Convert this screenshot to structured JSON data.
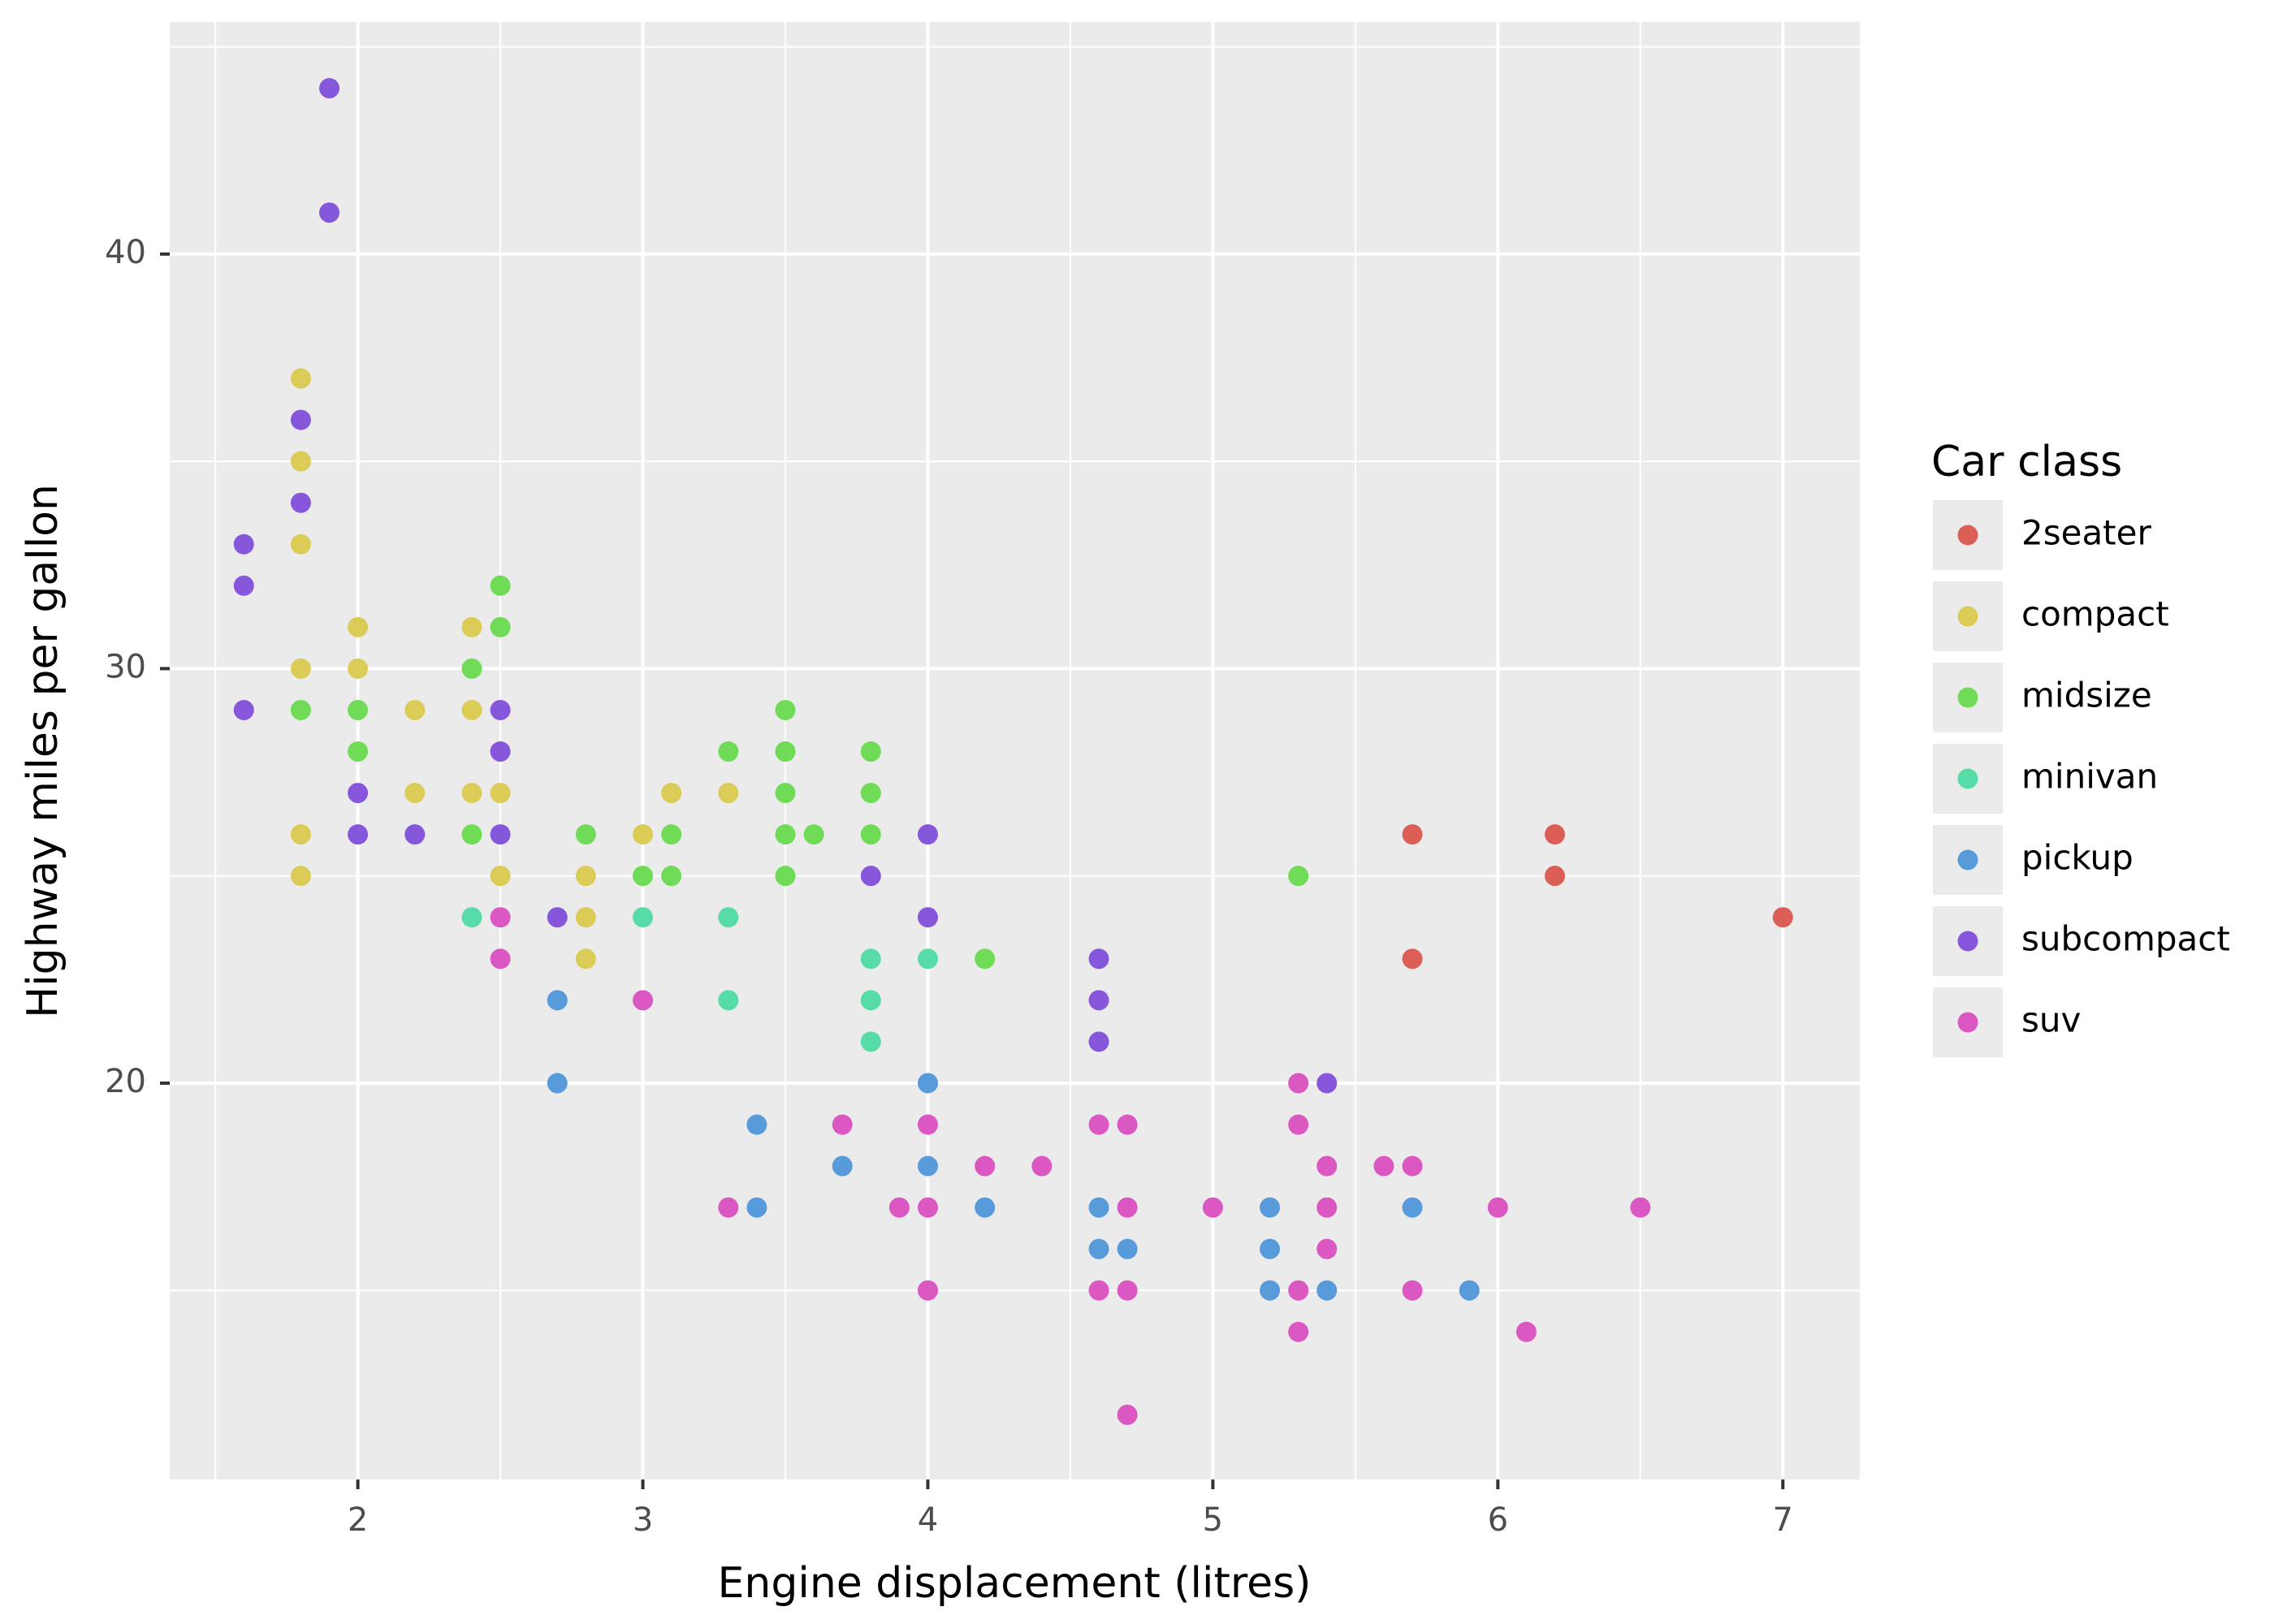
{
  "chart_data": {
    "type": "scatter",
    "x_label": "Engine displacement (litres)",
    "y_label": "Highway miles per gallon",
    "legend_title": "Car class",
    "legend_position": "right",
    "xlim": [
      1.34,
      7.27
    ],
    "ylim": [
      10.44,
      45.6
    ],
    "xticks": [
      2,
      3,
      4,
      5,
      6,
      7
    ],
    "yticks": [
      20,
      30,
      40
    ],
    "x_minor_grid": [
      1.5,
      2.5,
      3.5,
      4.5,
      5.5,
      6.5
    ],
    "y_minor_grid": [
      15,
      25,
      35,
      45
    ],
    "grid": true,
    "series": [
      {
        "name": "2seater",
        "color": "#db5f57",
        "x": [
          5.7,
          6.2,
          6.2,
          5.7,
          7
        ],
        "values": [
          26,
          26,
          25,
          23,
          24
        ]
      },
      {
        "name": "compact",
        "color": "#dbcb57",
        "x": [
          1.8,
          1.8,
          1.8,
          1.8,
          1.8,
          1.8,
          2,
          2,
          2.2,
          2.2,
          2.4,
          2.4,
          2.4,
          2.5,
          2.5,
          2.8,
          2.8,
          2.8,
          3,
          3.1,
          3.3
        ],
        "values": [
          37,
          35,
          33,
          30,
          26,
          25,
          31,
          30,
          29,
          27,
          31,
          29,
          27,
          27,
          25,
          25,
          24,
          23,
          26,
          27,
          27
        ]
      },
      {
        "name": "midsize",
        "color": "#6fdb57",
        "x": [
          1.8,
          2,
          2,
          2.4,
          2.4,
          2.5,
          2.5,
          2.8,
          3,
          3.1,
          3.1,
          3.3,
          3.5,
          3.5,
          3.5,
          3.5,
          3.5,
          3.6,
          3.8,
          3.8,
          3.8,
          4.2,
          5.3
        ],
        "values": [
          29,
          29,
          28,
          30,
          26,
          32,
          31,
          26,
          25,
          26,
          25,
          28,
          29,
          28,
          27,
          26,
          25,
          26,
          28,
          27,
          26,
          23,
          25
        ]
      },
      {
        "name": "minivan",
        "color": "#57dba7",
        "x": [
          2.4,
          3,
          3.3,
          3.3,
          3.8,
          3.8,
          3.8,
          4
        ],
        "values": [
          24,
          24,
          24,
          22,
          23,
          22,
          21,
          23
        ]
      },
      {
        "name": "pickup",
        "color": "#579bdb",
        "x": [
          2.7,
          2.7,
          3.4,
          3.4,
          3.7,
          4,
          4,
          4.2,
          4.6,
          4.6,
          4.7,
          5.2,
          5.2,
          5.2,
          5.4,
          5.7,
          5.9
        ],
        "values": [
          22,
          20,
          19,
          17,
          18,
          20,
          18,
          17,
          17,
          16,
          16,
          17,
          16,
          15,
          15,
          17,
          15
        ]
      },
      {
        "name": "subcompact",
        "color": "#8757db",
        "x": [
          1.6,
          1.6,
          1.6,
          1.8,
          1.8,
          1.9,
          1.9,
          2,
          2,
          2.2,
          2.5,
          2.5,
          2.5,
          2.7,
          3.8,
          4,
          4,
          4.6,
          4.6,
          4.6,
          5.4
        ],
        "values": [
          33,
          32,
          29,
          36,
          34,
          44,
          41,
          27,
          26,
          26,
          29,
          28,
          26,
          24,
          25,
          26,
          24,
          23,
          22,
          21,
          20
        ]
      },
      {
        "name": "suv",
        "color": "#db57c1",
        "x": [
          2.5,
          2.5,
          3,
          3.3,
          3.7,
          3.9,
          4,
          4,
          4,
          4.2,
          4.4,
          4.6,
          4.6,
          4.7,
          4.7,
          4.7,
          4.7,
          5,
          5.3,
          5.3,
          5.3,
          5.3,
          5.4,
          5.4,
          5.4,
          5.6,
          5.7,
          5.7,
          6,
          6.1,
          6.5
        ],
        "values": [
          24,
          23,
          22,
          17,
          19,
          17,
          19,
          17,
          15,
          18,
          18,
          19,
          15,
          19,
          17,
          15,
          12,
          17,
          20,
          19,
          15,
          14,
          18,
          17,
          16,
          18,
          18,
          15,
          17,
          14,
          17
        ]
      }
    ]
  }
}
